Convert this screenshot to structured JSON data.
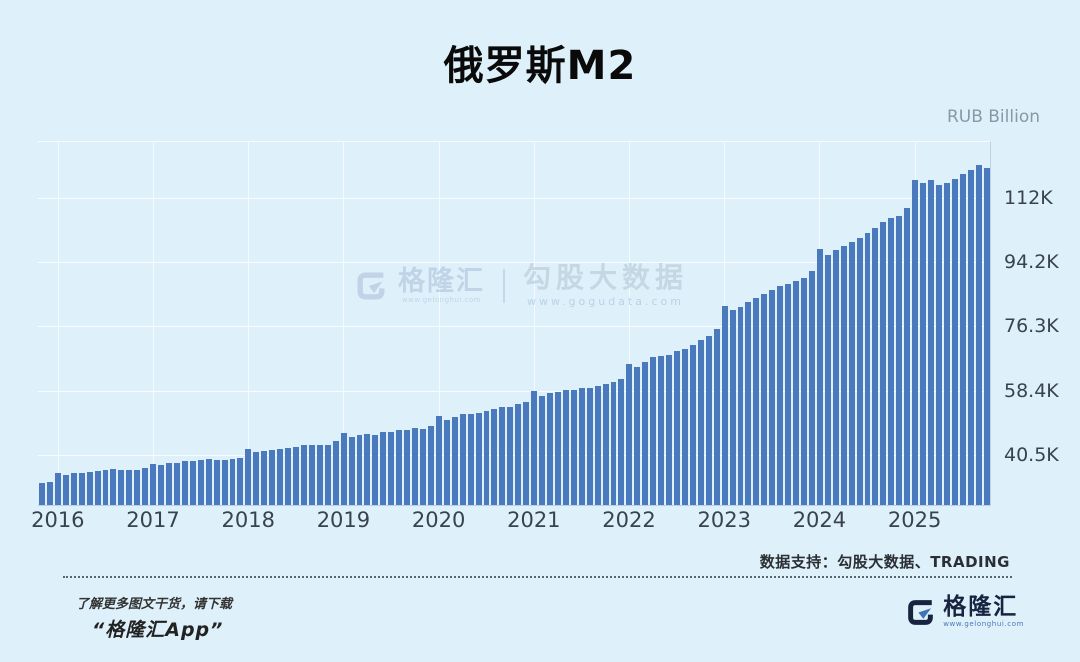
{
  "title": "俄罗斯M2",
  "y_axis_unit": "RUB Billion",
  "colors": {
    "background": "#def1fb",
    "bar": "#4a7abd",
    "axis_text": "#39434e",
    "footer_brand": "#17233f",
    "footer_link": "#4878b8"
  },
  "watermark": {
    "brand": "格隆汇",
    "brand_url": "www.gelonghui.com",
    "product": "勾股大数据",
    "product_url": "www.gogudata.com"
  },
  "footer": {
    "data_support": "数据支持：勾股大数据、TRADING",
    "promo_line1": "了解更多图文干货，请下载",
    "promo_line2": "“格隆汇App”",
    "logo_text": "格隆汇",
    "logo_url": "www.gelonghui.com"
  },
  "chart_data": {
    "type": "bar",
    "title": "俄罗斯M2",
    "ylabel": "RUB Billion",
    "frequency": "monthly",
    "start_month": "2015-11",
    "grid": true,
    "legend": "none",
    "bar_color": "#4a7abd",
    "ylim": [
      27000,
      127800
    ],
    "y_ticks": [
      {
        "label": "40.5K",
        "value": 40500
      },
      {
        "label": "58.4K",
        "value": 58400
      },
      {
        "label": "76.3K",
        "value": 76300
      },
      {
        "label": "94.2K",
        "value": 94200
      },
      {
        "label": "112K",
        "value": 112000
      }
    ],
    "x_tick_labels": [
      "2016",
      "2017",
      "2018",
      "2019",
      "2020",
      "2021",
      "2022",
      "2023",
      "2024",
      "2025"
    ],
    "x_tick_indices": [
      2,
      14,
      26,
      38,
      50,
      62,
      74,
      86,
      98,
      110
    ],
    "values": [
      33206,
      33276,
      35809,
      35283,
      35757,
      35880,
      36102,
      36433,
      36617,
      36918,
      36709,
      36859,
      36846,
      37272,
      38418,
      38006,
      38714,
      38555,
      39296,
      39223,
      39623,
      39776,
      39419,
      39571,
      39667,
      40114,
      42442,
      41598,
      42045,
      42377,
      42675,
      42967,
      43122,
      43651,
      43707,
      43737,
      43792,
      44892,
      47109,
      45922,
      46451,
      46735,
      46436,
      47196,
      47349,
      47744,
      47926,
      48267,
      48082,
      48997,
      51660,
      50622,
      51314,
      52297,
      52329,
      52626,
      53067,
      53631,
      54120,
      54348,
      55082,
      55734,
      58652,
      57302,
      58135,
      58254,
      58855,
      58844,
      59470,
      59628,
      60099,
      60583,
      61153,
      62043,
      66253,
      65310,
      66658,
      68046,
      68326,
      68708,
      69727,
      70446,
      71517,
      72925,
      73905,
      75813,
      82388,
      81283,
      82087,
      83237,
      84389,
      85594,
      86780,
      87925,
      88441,
      89293,
      90129,
      92035,
      98004,
      96506,
      97803,
      99021,
      100018,
      101012,
      102505,
      103922,
      105451,
      106672,
      107222,
      109545,
      117268,
      116418,
      117154,
      115850,
      116300,
      117600,
      118800,
      119900,
      121300,
      120600
    ]
  }
}
